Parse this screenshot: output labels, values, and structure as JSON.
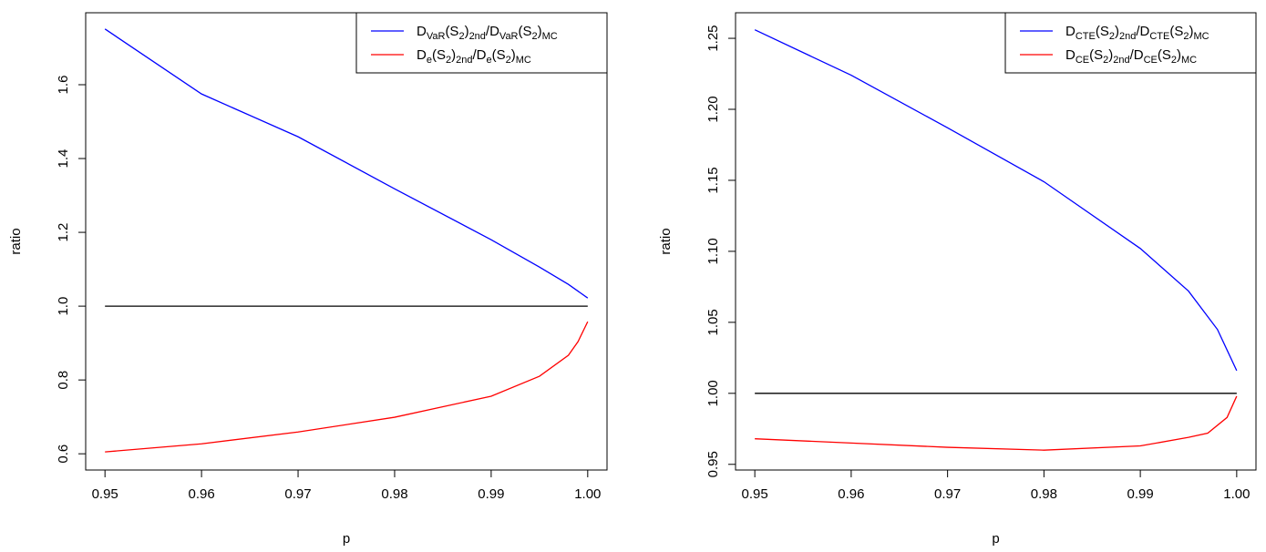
{
  "chart_data": [
    {
      "type": "line",
      "xlabel": "p",
      "ylabel": "ratio",
      "legend": "top-right",
      "xlim": [
        0.948,
        1.002
      ],
      "ylim": [
        0.556,
        1.795
      ],
      "xticks": [
        0.95,
        0.96,
        0.97,
        0.98,
        0.99,
        {
          "value": 1,
          "label": "1.00"
        }
      ],
      "yticks": [
        0.6,
        0.8,
        {
          "value": 1,
          "label": "1.0"
        },
        1.2,
        1.4,
        1.6
      ],
      "series": [
        {
          "name": [
            "D",
            "VaR",
            "(S",
            "2",
            ")",
            "2nd",
            "/D",
            "VaR",
            "(S",
            "2",
            ")",
            "MC"
          ],
          "color": "#0000ff",
          "x": [
            0.95,
            0.96,
            0.97,
            0.98,
            0.99,
            0.995,
            0.998,
            1.0
          ],
          "values": [
            1.751,
            1.575,
            1.459,
            1.318,
            1.18,
            1.106,
            1.059,
            1.022
          ]
        },
        {
          "name": [
            "D",
            "e",
            "(S",
            "2",
            ")",
            "2nd",
            "/D",
            "e",
            "(S",
            "2",
            ")",
            "MC"
          ],
          "color": "#ff0000",
          "x": [
            0.95,
            0.96,
            0.97,
            0.98,
            0.99,
            0.995,
            0.998,
            0.999,
            1.0
          ],
          "values": [
            0.605,
            0.627,
            0.659,
            0.699,
            0.756,
            0.81,
            0.867,
            0.904,
            0.958
          ]
        },
        {
          "color": "#000000",
          "x": [
            0.95,
            1.0
          ],
          "values": [
            1,
            1
          ]
        }
      ]
    },
    {
      "type": "line",
      "xlabel": "p",
      "ylabel": "ratio",
      "legend": "top-right",
      "xlim": [
        0.948,
        1.002
      ],
      "ylim": [
        0.946,
        1.268
      ],
      "xticks": [
        0.95,
        0.96,
        0.97,
        0.98,
        0.99,
        {
          "value": 1,
          "label": "1.00"
        }
      ],
      "yticks": [
        0.95,
        {
          "value": 1,
          "label": "1.00"
        },
        1.05,
        {
          "value": 1.1,
          "label": "1.10"
        },
        1.15,
        {
          "value": 1.2,
          "label": "1.20"
        },
        1.25
      ],
      "series": [
        {
          "name": [
            "D",
            "CTE",
            "(S",
            "2",
            ")",
            "2nd",
            "/D",
            "CTE",
            "(S",
            "2",
            ")",
            "MC"
          ],
          "color": "#0000ff",
          "x": [
            0.95,
            0.96,
            0.97,
            0.98,
            0.99,
            0.995,
            0.998,
            1.0
          ],
          "values": [
            1.256,
            1.224,
            1.187,
            1.149,
            1.102,
            1.072,
            1.045,
            1.016
          ]
        },
        {
          "name": [
            "D",
            "CE",
            "(S",
            "2",
            ")",
            "2nd",
            "/D",
            "CE",
            "(S",
            "2",
            ")",
            "MC"
          ],
          "color": "#ff0000",
          "x": [
            0.95,
            0.96,
            0.97,
            0.98,
            0.99,
            0.995,
            0.997,
            0.999,
            1.0
          ],
          "values": [
            0.968,
            0.965,
            0.962,
            0.96,
            0.963,
            0.969,
            0.972,
            0.983,
            0.998
          ]
        },
        {
          "color": "#000000",
          "x": [
            0.95,
            1.0
          ],
          "values": [
            1,
            1
          ]
        }
      ]
    }
  ]
}
